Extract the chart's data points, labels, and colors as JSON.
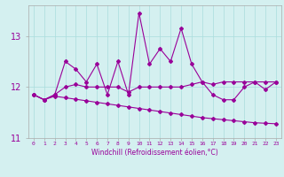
{
  "xlabel": "Windchill (Refroidissement éolien,°C)",
  "x": [
    0,
    1,
    2,
    3,
    4,
    5,
    6,
    7,
    8,
    9,
    10,
    11,
    12,
    13,
    14,
    15,
    16,
    17,
    18,
    19,
    20,
    21,
    22,
    23
  ],
  "line1": [
    11.85,
    11.75,
    11.85,
    12.5,
    12.35,
    12.1,
    12.45,
    11.85,
    12.5,
    11.85,
    13.45,
    12.45,
    12.75,
    12.5,
    13.15,
    12.45,
    12.1,
    11.85,
    11.75,
    11.75,
    12.0,
    12.1,
    11.95,
    12.1
  ],
  "line2": [
    11.85,
    11.75,
    11.85,
    12.0,
    12.05,
    12.0,
    12.0,
    12.0,
    12.0,
    11.9,
    12.0,
    12.0,
    12.0,
    12.0,
    12.0,
    12.05,
    12.1,
    12.05,
    12.1,
    12.1,
    12.1,
    12.1,
    12.1,
    12.1
  ],
  "line3": [
    11.85,
    11.75,
    11.82,
    11.79,
    11.76,
    11.73,
    11.7,
    11.67,
    11.64,
    11.61,
    11.58,
    11.55,
    11.52,
    11.49,
    11.46,
    11.43,
    11.4,
    11.38,
    11.36,
    11.34,
    11.32,
    11.3,
    11.29,
    11.28
  ],
  "color": "#990099",
  "bg_color": "#d4f0f0",
  "ylim": [
    11.0,
    13.6
  ],
  "yticks": [
    11,
    12,
    13
  ],
  "grid_color": "#aadddd",
  "marker": "D",
  "markersize": 2,
  "linewidth": 0.8
}
